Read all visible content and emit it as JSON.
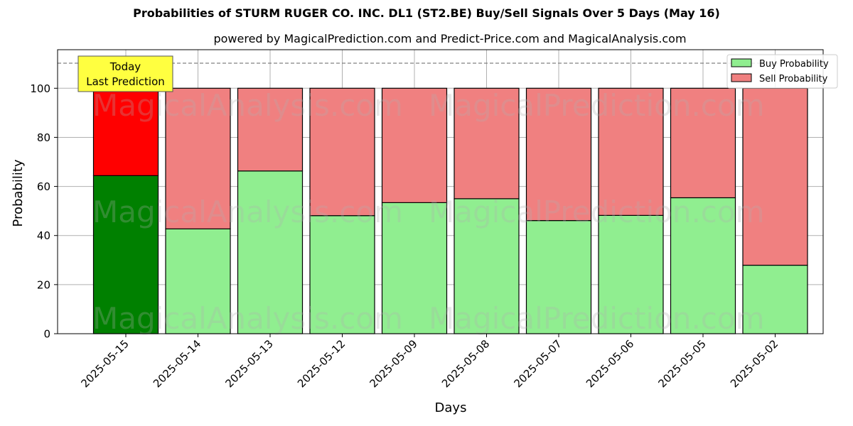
{
  "title": "Probabilities of STURM RUGER CO. INC.  DL1 (ST2.BE) Buy/Sell Signals Over 5 Days (May 16)",
  "subtitle": "powered by MagicalPrediction.com and Predict-Price.com and MagicalAnalysis.com",
  "annotation": {
    "line1": "Today",
    "line2": "Last Prediction"
  },
  "legend": {
    "buy": "Buy Probability",
    "sell": "Sell Probability"
  },
  "xlabel": "Days",
  "ylabel": "Probability",
  "yticks": [
    "0",
    "20",
    "40",
    "60",
    "80",
    "100"
  ],
  "watermarks": [
    "MagicalAnalysis.com",
    "MagicalPrediction.com"
  ],
  "colors": {
    "buy_today": "#008000",
    "sell_today": "#ff0000",
    "buy": "#90ee90",
    "sell": "#f08080",
    "annotation_bg": "#ffff40"
  },
  "chart_data": {
    "type": "bar",
    "stacked": true,
    "title": "Probabilities of STURM RUGER CO. INC.  DL1 (ST2.BE) Buy/Sell Signals Over 5 Days (May 16)",
    "subtitle": "powered by MagicalPrediction.com and Predict-Price.com and MagicalAnalysis.com",
    "xlabel": "Days",
    "ylabel": "Probability",
    "ylim": [
      0,
      115
    ],
    "yticks": [
      0,
      20,
      40,
      60,
      80,
      100
    ],
    "grid": true,
    "legend_position": "upper right",
    "reference_line": {
      "y": 110,
      "style": "dashed"
    },
    "annotation": {
      "text": "Today\nLast Prediction",
      "x": "2025-05-15"
    },
    "categories": [
      "2025-05-15",
      "2025-05-14",
      "2025-05-13",
      "2025-05-12",
      "2025-05-09",
      "2025-05-08",
      "2025-05-07",
      "2025-05-06",
      "2025-05-05",
      "2025-05-02"
    ],
    "series": [
      {
        "name": "Buy Probability",
        "values": [
          64.4,
          42.7,
          66.3,
          48.1,
          53.4,
          55.0,
          46.1,
          48.2,
          55.4,
          27.9
        ]
      },
      {
        "name": "Sell Probability",
        "values": [
          35.6,
          57.3,
          33.7,
          51.9,
          46.6,
          45.0,
          53.9,
          51.8,
          44.6,
          72.1
        ]
      }
    ]
  }
}
